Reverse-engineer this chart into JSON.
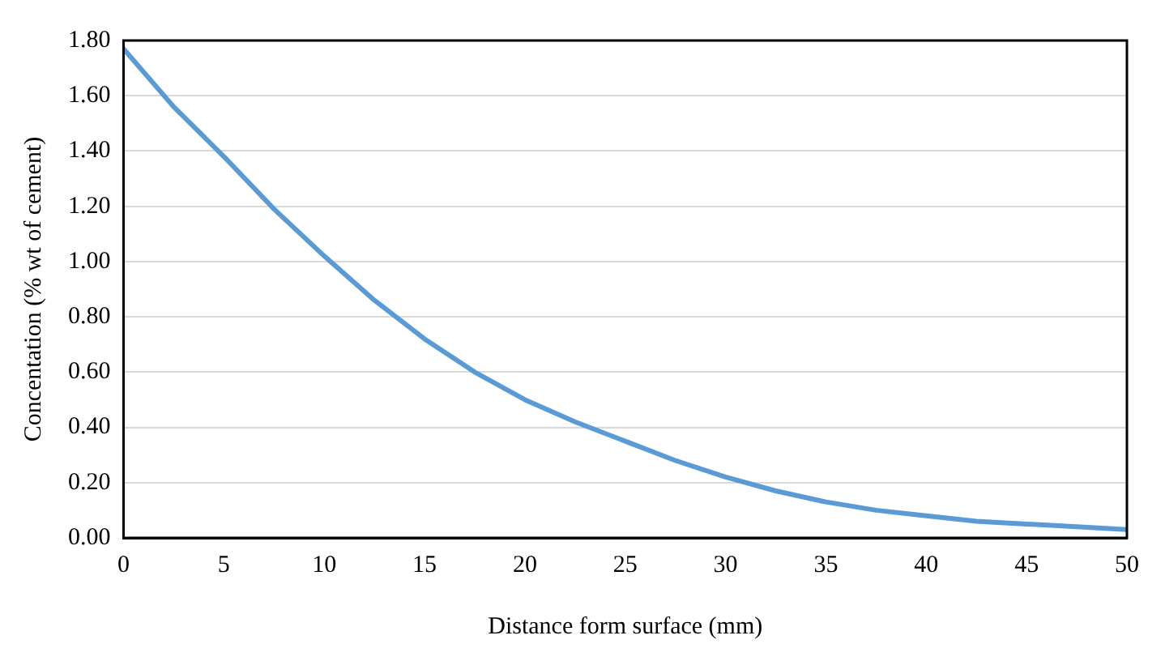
{
  "chart_data": {
    "type": "line",
    "xlabel": "Distance form surface (mm)",
    "ylabel": "Concentation (% wt of cement)",
    "x": [
      0,
      2.5,
      5,
      7.5,
      10,
      12.5,
      15,
      17.5,
      20,
      22.5,
      25,
      27.5,
      30,
      32.5,
      35,
      37.5,
      40,
      42.5,
      45,
      47.5,
      50
    ],
    "series": [
      {
        "color": "#5b9bd5",
        "values": [
          1.77,
          1.56,
          1.38,
          1.19,
          1.02,
          0.86,
          0.72,
          0.6,
          0.5,
          0.42,
          0.35,
          0.28,
          0.22,
          0.17,
          0.13,
          0.1,
          0.08,
          0.06,
          0.05,
          0.04,
          0.03
        ]
      }
    ],
    "xlim": [
      0,
      50
    ],
    "xticks": [
      0,
      5,
      10,
      15,
      20,
      25,
      30,
      35,
      40,
      45,
      50
    ],
    "ylim": [
      0,
      1.8
    ],
    "yticks": [
      {
        "value": 0,
        "label": "0.00"
      },
      {
        "value": 0.2,
        "label": "0.20"
      },
      {
        "value": 0.4,
        "label": "0.40"
      },
      {
        "value": 0.6,
        "label": "0.60"
      },
      {
        "value": 0.8,
        "label": "0.80"
      },
      {
        "value": 1,
        "label": "1.00"
      },
      {
        "value": 1.2,
        "label": "1.20"
      },
      {
        "value": 1.4,
        "label": "1.40"
      },
      {
        "value": 1.6,
        "label": "1.60"
      },
      {
        "value": 1.8,
        "label": "1.80"
      }
    ],
    "grid": "y",
    "legend": false,
    "marker": "none",
    "line_style": "solid"
  }
}
